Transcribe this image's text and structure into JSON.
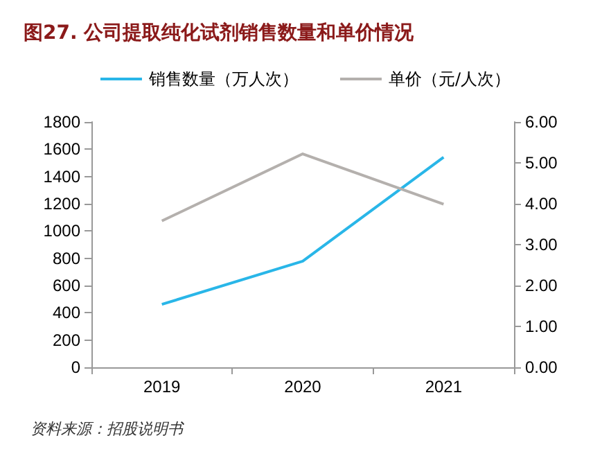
{
  "chart_data": {
    "type": "line",
    "title": "图27. 公司提取纯化试剂销售数量和单价情况",
    "categories": [
      "2019",
      "2020",
      "2021"
    ],
    "series": [
      {
        "name": "销售数量（万人次）",
        "color": "#29b6e8",
        "values": [
          462,
          779,
          1541
        ]
      },
      {
        "name": "单价（元/人次）",
        "color": "#b4b0ad",
        "values": [
          3.58,
          5.22,
          3.99
        ],
        "axis": "y2"
      }
    ],
    "ylim": [
      0,
      1800
    ],
    "yticks": [
      0,
      200,
      400,
      600,
      800,
      1000,
      1200,
      1400,
      1600,
      1800
    ],
    "y2lim": [
      0,
      6
    ],
    "y2ticks": [
      {
        "value": 0,
        "label": "0.00"
      },
      {
        "value": 1,
        "label": "1.00"
      },
      {
        "value": 2,
        "label": "2.00"
      },
      {
        "value": 3,
        "label": "3.00"
      },
      {
        "value": 4,
        "label": "4.00"
      },
      {
        "value": 5,
        "label": "5.00"
      },
      {
        "value": 6,
        "label": "6.00"
      }
    ],
    "legend": "top",
    "grid": false,
    "marker": "none",
    "line_style": "solid",
    "annotations": [
      "资料来源：招股说明书"
    ]
  }
}
